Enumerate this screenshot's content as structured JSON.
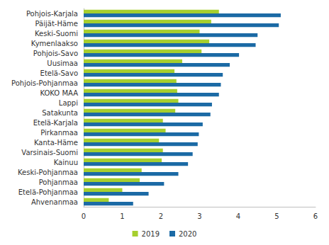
{
  "chart_data": {
    "type": "bar",
    "orientation": "horizontal",
    "categories": [
      "Pohjois-Karjala",
      "Päijät-Häme",
      "Keski-Suomi",
      "Kymenlaakso",
      "Pohjois-Savo",
      "Uusimaa",
      "Etelä-Savo",
      "Pohjois-Pohjanmaa",
      "KOKO MAA",
      "Lappi",
      "Satakunta",
      "Etelä-Karjala",
      "Pirkanmaa",
      "Kanta-Häme",
      "Varsinais-Suomi",
      "Kainuu",
      "Keski-Pohjanmaa",
      "Pohjanmaa",
      "Etelä-Pohjanmaa",
      "Ahvenanmaa"
    ],
    "series": [
      {
        "name": "2019",
        "color": "#a6cf2e",
        "values": [
          3.5,
          3.3,
          3.0,
          3.25,
          3.05,
          2.55,
          2.35,
          2.4,
          2.42,
          2.45,
          2.37,
          2.05,
          2.12,
          1.95,
          2.05,
          2.02,
          1.5,
          1.45,
          1.0,
          0.65
        ]
      },
      {
        "name": "2020",
        "color": "#1b6aa5",
        "values": [
          5.1,
          5.05,
          4.5,
          4.45,
          4.02,
          3.78,
          3.6,
          3.55,
          3.5,
          3.32,
          3.28,
          3.08,
          2.98,
          2.95,
          2.82,
          2.7,
          2.45,
          2.08,
          1.68,
          1.28
        ]
      }
    ],
    "xlim": [
      0,
      6
    ],
    "xticks": [
      0,
      1,
      2,
      3,
      4,
      5,
      6
    ],
    "grid": false,
    "legend": "bottom"
  }
}
